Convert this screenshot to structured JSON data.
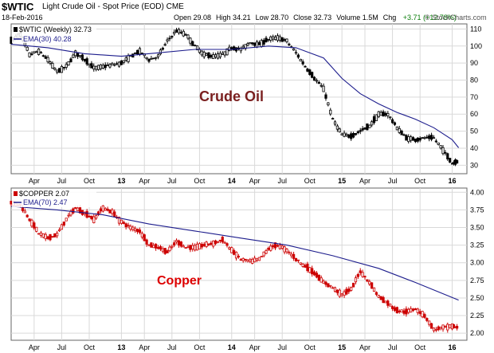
{
  "header": {
    "symbol": "$WTIC",
    "description": "Light Crude Oil - Spot Price (EOD) CME",
    "date": "18-Feb-2016",
    "open_label": "Open 29.08",
    "high_label": "High 34.21",
    "low_label": "Low 28.70",
    "close_label": "Close 32.73",
    "volume_label": "Volume 1.5M",
    "chg_label": "Chg",
    "chg_value": "+3.71 (+12.78%)",
    "source": "© StockCharts.com"
  },
  "chart_data": [
    {
      "type": "candlestick",
      "legend": {
        "price": "$WTIC (Weekly) 32.73",
        "ma": "EMA(30) 40.28"
      },
      "annotation": "Crude Oil",
      "x_tick_labels": [
        "Apr",
        "Jul",
        "Oct",
        "13",
        "Apr",
        "Jul",
        "Oct",
        "14",
        "Apr",
        "Jul",
        "Oct",
        "15",
        "Apr",
        "Jul",
        "Oct",
        "16"
      ],
      "x_tick_positions": [
        2.5,
        5.5,
        8.5,
        12,
        14.5,
        17.5,
        20.5,
        24,
        26.5,
        29.5,
        32.5,
        36,
        38.5,
        41.5,
        44.5,
        48
      ],
      "x_range": [
        0,
        49.6
      ],
      "y_ticks": [
        30,
        40,
        50,
        60,
        70,
        80,
        90,
        100,
        110
      ],
      "y_range": [
        25,
        113
      ],
      "grid": true,
      "colors": {
        "up": "#000000",
        "down": "#000000",
        "ma": "#1c1c8c",
        "annotation": "#7a1f1f"
      },
      "price_series": [
        [
          0,
          103
        ],
        [
          1,
          107
        ],
        [
          2,
          95
        ],
        [
          3,
          97
        ],
        [
          4,
          92
        ],
        [
          5,
          85
        ],
        [
          6,
          88
        ],
        [
          7,
          96
        ],
        [
          8,
          92
        ],
        [
          9,
          87
        ],
        [
          10,
          88
        ],
        [
          11,
          89
        ],
        [
          12,
          90
        ],
        [
          13,
          94
        ],
        [
          14,
          97
        ],
        [
          15,
          92
        ],
        [
          16,
          94
        ],
        [
          17,
          103
        ],
        [
          18,
          109
        ],
        [
          19,
          107
        ],
        [
          20,
          100
        ],
        [
          21,
          95
        ],
        [
          22,
          94
        ],
        [
          23,
          95
        ],
        [
          24,
          99
        ],
        [
          25,
          98
        ],
        [
          26,
          102
        ],
        [
          27,
          101
        ],
        [
          28,
          104
        ],
        [
          29,
          105
        ],
        [
          30,
          103
        ],
        [
          31,
          96
        ],
        [
          32,
          88
        ],
        [
          33,
          81
        ],
        [
          34,
          75
        ],
        [
          35,
          57
        ],
        [
          36,
          48
        ],
        [
          37,
          47
        ],
        [
          38,
          50
        ],
        [
          39,
          53
        ],
        [
          40,
          60
        ],
        [
          41,
          60
        ],
        [
          42,
          52
        ],
        [
          43,
          46
        ],
        [
          44,
          45
        ],
        [
          45,
          46
        ],
        [
          46,
          46
        ],
        [
          47,
          39
        ],
        [
          48,
          31
        ],
        [
          48.7,
          32.73
        ]
      ],
      "ema_series": [
        [
          0,
          101
        ],
        [
          4,
          99
        ],
        [
          8,
          95.5
        ],
        [
          12,
          94
        ],
        [
          16,
          96
        ],
        [
          20,
          98
        ],
        [
          24,
          98
        ],
        [
          28,
          100
        ],
        [
          31,
          99
        ],
        [
          34,
          93
        ],
        [
          36,
          81
        ],
        [
          38,
          72
        ],
        [
          40,
          66
        ],
        [
          42,
          61
        ],
        [
          44,
          57
        ],
        [
          46,
          52
        ],
        [
          48,
          45
        ],
        [
          48.7,
          40.28
        ]
      ]
    },
    {
      "type": "candlestick",
      "legend": {
        "price": "$COPPER 2.07",
        "ma": "EMA(70) 2.47"
      },
      "annotation": "Copper",
      "x_tick_labels": [
        "Apr",
        "Jul",
        "Oct",
        "13",
        "Apr",
        "Jul",
        "Oct",
        "14",
        "Apr",
        "Jul",
        "Oct",
        "15",
        "Apr",
        "Jul",
        "Oct",
        "16"
      ],
      "x_tick_positions": [
        2.5,
        5.5,
        8.5,
        12,
        14.5,
        17.5,
        20.5,
        24,
        26.5,
        29.5,
        32.5,
        36,
        38.5,
        41.5,
        44.5,
        48
      ],
      "x_range": [
        0,
        49.6
      ],
      "y_ticks": [
        2.0,
        2.25,
        2.5,
        2.75,
        3.0,
        3.25,
        3.5,
        3.75,
        4.0
      ],
      "y_ticks_labels": [
        "2.00",
        "2.25",
        "2.50",
        "2.75",
        "3.00",
        "3.25",
        "3.50",
        "3.75",
        "4.00"
      ],
      "y_range": [
        1.9,
        4.06
      ],
      "grid": true,
      "colors": {
        "up": "#cc0000",
        "down": "#cc0000",
        "ma": "#1c1c8c",
        "annotation": "#dd0000"
      },
      "price_series": [
        [
          0,
          3.85
        ],
        [
          1,
          3.82
        ],
        [
          2,
          3.62
        ],
        [
          3,
          3.42
        ],
        [
          4,
          3.35
        ],
        [
          5,
          3.4
        ],
        [
          6,
          3.62
        ],
        [
          7,
          3.78
        ],
        [
          8,
          3.7
        ],
        [
          9,
          3.62
        ],
        [
          10,
          3.78
        ],
        [
          11,
          3.72
        ],
        [
          12,
          3.58
        ],
        [
          13,
          3.5
        ],
        [
          14,
          3.45
        ],
        [
          15,
          3.25
        ],
        [
          16,
          3.22
        ],
        [
          17,
          3.15
        ],
        [
          18,
          3.3
        ],
        [
          19,
          3.22
        ],
        [
          20,
          3.22
        ],
        [
          21,
          3.25
        ],
        [
          22,
          3.28
        ],
        [
          23,
          3.32
        ],
        [
          24,
          3.18
        ],
        [
          25,
          3.05
        ],
        [
          26,
          3.02
        ],
        [
          27,
          3.05
        ],
        [
          28,
          3.2
        ],
        [
          29,
          3.25
        ],
        [
          30,
          3.18
        ],
        [
          31,
          3.05
        ],
        [
          32,
          2.95
        ],
        [
          33,
          2.85
        ],
        [
          34,
          2.72
        ],
        [
          35,
          2.65
        ],
        [
          36,
          2.55
        ],
        [
          37,
          2.62
        ],
        [
          38,
          2.88
        ],
        [
          39,
          2.72
        ],
        [
          40,
          2.52
        ],
        [
          41,
          2.42
        ],
        [
          42,
          2.32
        ],
        [
          43,
          2.3
        ],
        [
          44,
          2.35
        ],
        [
          45,
          2.25
        ],
        [
          46,
          2.05
        ],
        [
          47,
          2.08
        ],
        [
          48,
          2.1
        ],
        [
          48.7,
          2.07
        ]
      ],
      "ema_series": [
        [
          0,
          3.8
        ],
        [
          5,
          3.75
        ],
        [
          10,
          3.68
        ],
        [
          15,
          3.55
        ],
        [
          20,
          3.45
        ],
        [
          25,
          3.35
        ],
        [
          30,
          3.25
        ],
        [
          35,
          3.1
        ],
        [
          40,
          2.92
        ],
        [
          44,
          2.72
        ],
        [
          48.7,
          2.47
        ]
      ]
    }
  ]
}
